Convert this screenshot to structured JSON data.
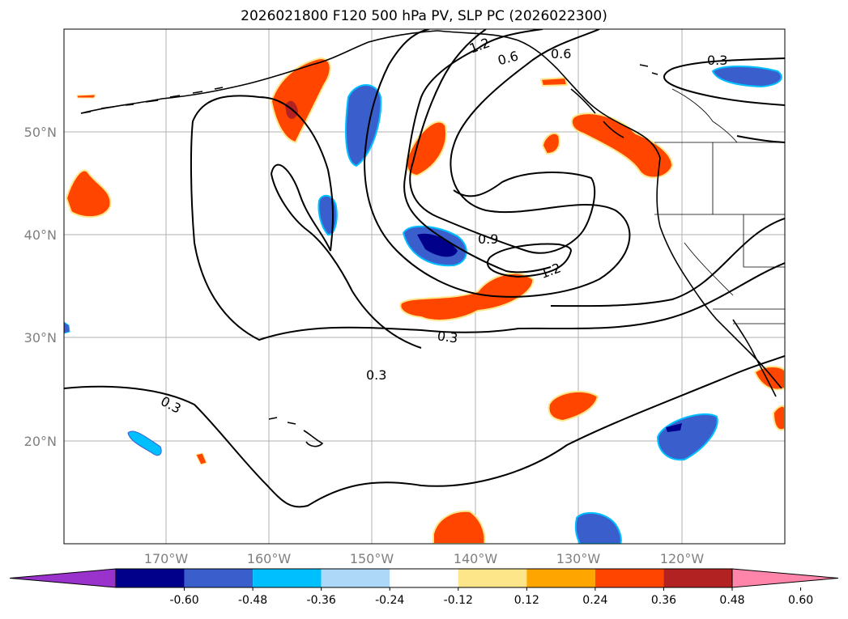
{
  "title": "2026021800 F120 500 hPa PV, SLP PC (2026022300)",
  "latitude_labels": [
    "50°N",
    "40°N",
    "30°N",
    "20°N"
  ],
  "longitude_labels": [
    "170°W",
    "160°W",
    "150°W",
    "140°W",
    "130°W",
    "120°W"
  ],
  "contour_labels": [
    "1.2",
    "0.6",
    "0.6",
    "0.3",
    "0.9",
    "1.2",
    "0.3",
    "0.3",
    "0.3"
  ],
  "colorbar": {
    "tick_labels": [
      "-0.60",
      "-0.48",
      "-0.36",
      "-0.24",
      "-0.12",
      "0.12",
      "0.24",
      "0.36",
      "0.48",
      "0.60"
    ],
    "colors": [
      "#9933cc",
      "#00008b",
      "#3a5fcd",
      "#00bfff",
      "#add8f7",
      "#ffffff",
      "#fde68a",
      "#ffa500",
      "#ff4500",
      "#b22222",
      "#ff85aa"
    ]
  },
  "colors": {
    "positive_anomaly": "#ff4500",
    "strong_positive": "#b22222",
    "negative_anomaly": "#3a5fcd",
    "strong_negative": "#00008b",
    "weak_negative": "#00bfff",
    "weak_positive": "#fde68a",
    "gridline": "#b0b0b0",
    "contour": "#000000"
  }
}
